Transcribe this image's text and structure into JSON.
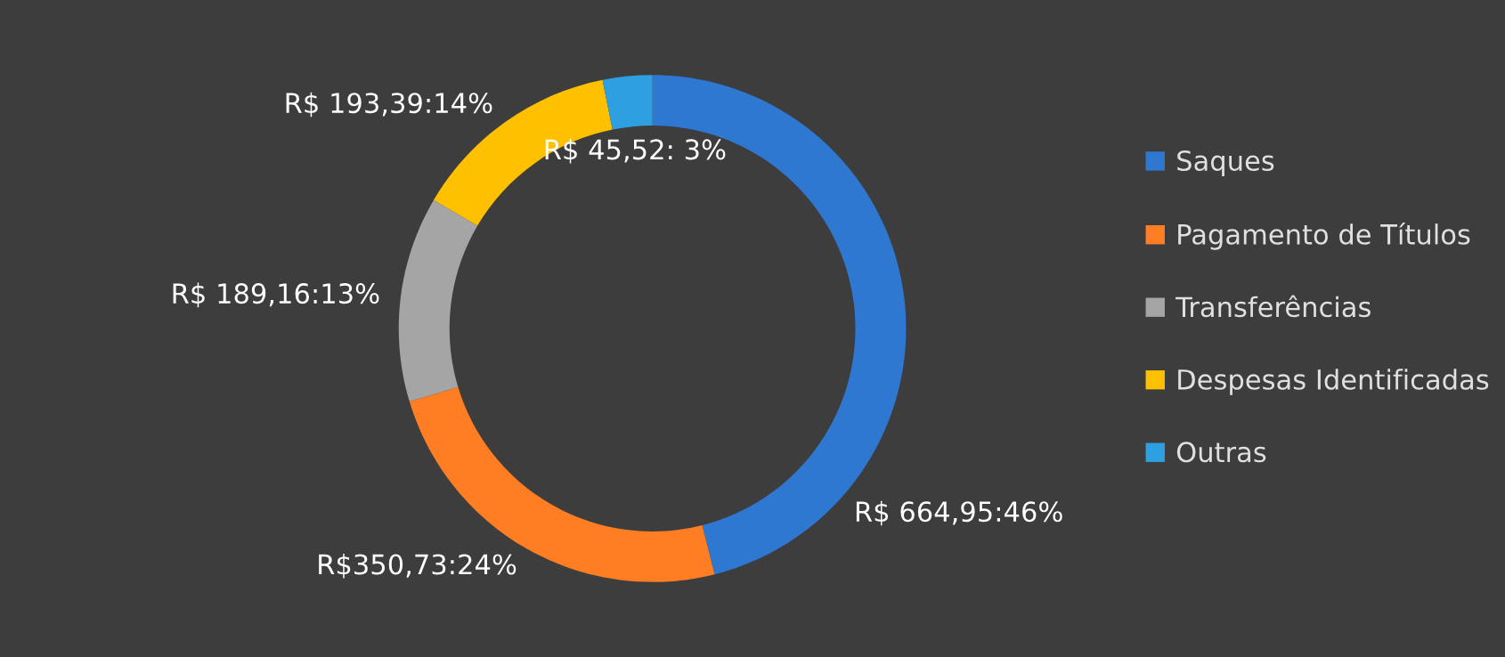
{
  "chart_data": {
    "type": "donut",
    "categories": [
      "Saques",
      "Pagamento de Títulos",
      "Transferências",
      "Despesas Identificadas",
      "Outras"
    ],
    "values": [
      664.95,
      350.73,
      189.16,
      193.39,
      45.52
    ],
    "colors": [
      "#2f78d2",
      "#ff7d23",
      "#a5a5a5",
      "#ffc000",
      "#2e9fe0"
    ],
    "value_labels": [
      "R$ 664,95:46%",
      "R$350,73:24%",
      "R$ 189,16:13%",
      "R$ 193,39:14%",
      "R$ 45,52: 3%"
    ],
    "legend": "right"
  }
}
